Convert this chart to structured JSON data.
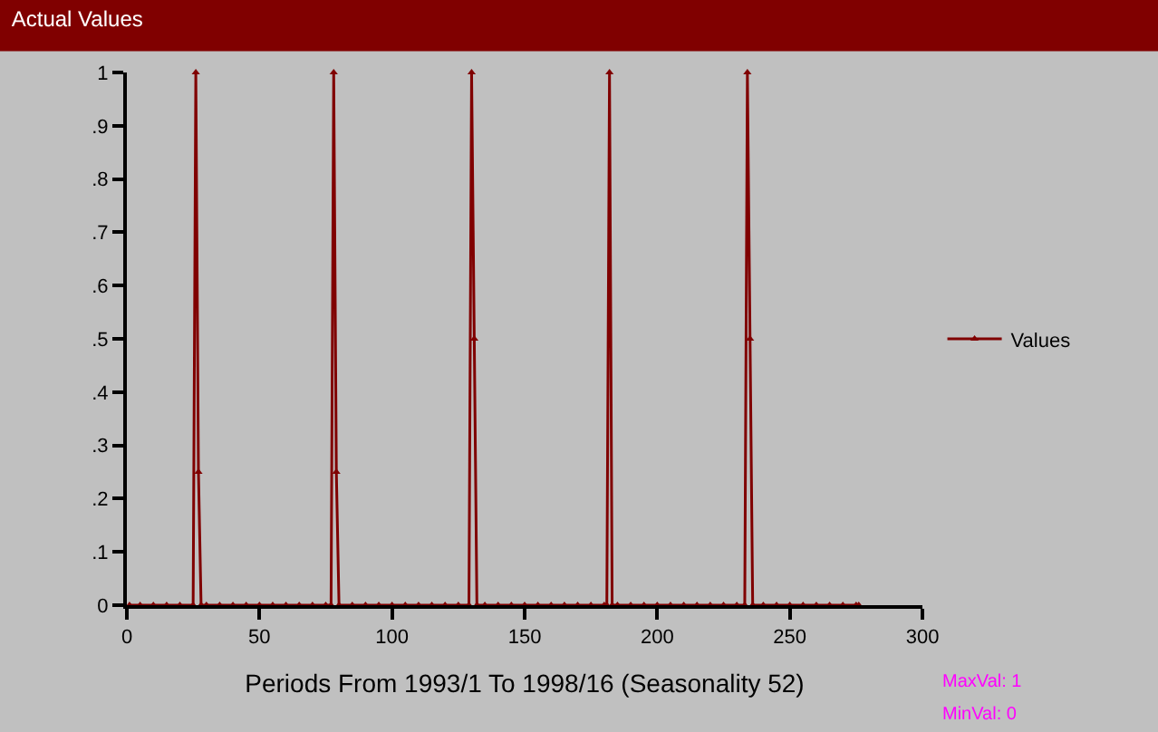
{
  "chart_data": {
    "type": "line",
    "title": "Actual Values",
    "xlabel": "Periods From 1993/1 To 1998/16 (Seasonality 52)",
    "x": [
      1,
      5,
      10,
      15,
      20,
      25,
      26,
      27,
      28,
      30,
      35,
      40,
      45,
      50,
      55,
      60,
      65,
      70,
      75,
      77,
      78,
      79,
      80,
      85,
      90,
      95,
      100,
      105,
      110,
      115,
      120,
      125,
      129,
      130,
      131,
      132,
      135,
      140,
      145,
      150,
      155,
      160,
      165,
      170,
      175,
      180,
      181,
      182,
      183,
      185,
      190,
      195,
      200,
      205,
      210,
      215,
      220,
      225,
      230,
      233,
      234,
      235,
      236,
      240,
      245,
      250,
      255,
      260,
      265,
      270,
      275,
      276
    ],
    "series": [
      {
        "name": "Values",
        "color": "#800000",
        "values": [
          0,
          0,
          0,
          0,
          0,
          0,
          1,
          0.25,
          0,
          0,
          0,
          0,
          0,
          0,
          0,
          0,
          0,
          0,
          0,
          0,
          1,
          0.25,
          0,
          0,
          0,
          0,
          0,
          0,
          0,
          0,
          0,
          0,
          0,
          1,
          0.5,
          0,
          0,
          0,
          0,
          0,
          0,
          0,
          0,
          0,
          0,
          0,
          0,
          1,
          0,
          0,
          0,
          0,
          0,
          0,
          0,
          0,
          0,
          0,
          0,
          0,
          1,
          0.5,
          0,
          0,
          0,
          0,
          0,
          0,
          0,
          0,
          0,
          0
        ]
      }
    ],
    "xlim": [
      0,
      300
    ],
    "xticks": [
      0,
      50,
      100,
      150,
      200,
      250,
      300
    ],
    "ylim": [
      0,
      1
    ],
    "yticks": [
      {
        "value": 0,
        "label": "0"
      },
      {
        "value": 0.1,
        "label": ".1"
      },
      {
        "value": 0.2,
        "label": ".2"
      },
      {
        "value": 0.3,
        "label": ".3"
      },
      {
        "value": 0.4,
        "label": ".4"
      },
      {
        "value": 0.5,
        "label": ".5"
      },
      {
        "value": 0.6,
        "label": ".6"
      },
      {
        "value": 0.7,
        "label": ".7"
      },
      {
        "value": 0.8,
        "label": ".8"
      },
      {
        "value": 0.9,
        "label": ".9"
      },
      {
        "value": 1,
        "label": "1"
      }
    ],
    "grid": false,
    "legend": "right",
    "marker": "triangle",
    "line_style": "solid",
    "annotations": [
      "MaxVal: 1",
      "MinVal: 0"
    ]
  }
}
